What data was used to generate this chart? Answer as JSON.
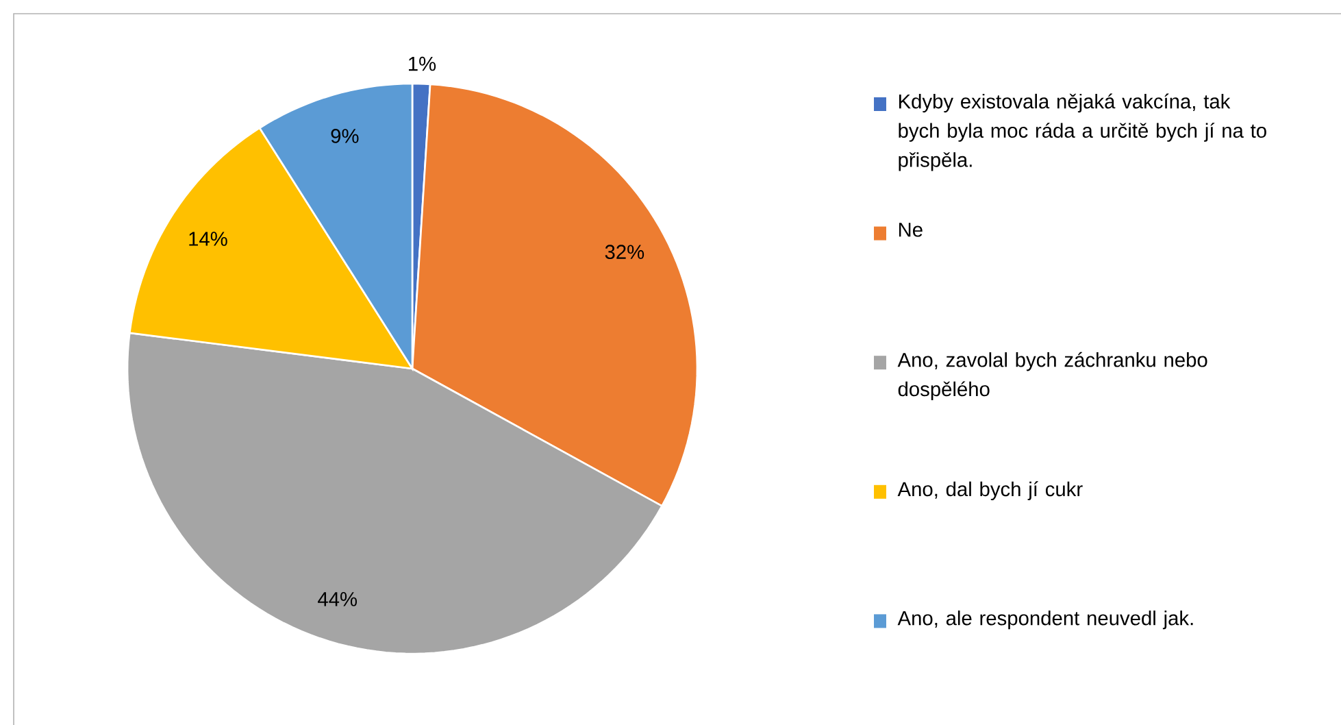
{
  "chart_data": {
    "type": "pie",
    "categories": [
      "Kdyby existovala nějaká vakcína, tak bych byla moc ráda a určitě bych jí na to přispěla.",
      "Ne",
      "Ano, zavolal bych záchranku nebo dospělého",
      "Ano, dal bych jí cukr",
      "Ano, ale respondent neuvedl jak."
    ],
    "values": [
      1,
      32,
      44,
      14,
      9
    ],
    "value_labels": [
      "1%",
      "32%",
      "44%",
      "14%",
      "9%"
    ],
    "colors": [
      "#4472c4",
      "#ed7d31",
      "#a5a5a5",
      "#ffc000",
      "#5b9bd5"
    ],
    "legend": "right"
  }
}
